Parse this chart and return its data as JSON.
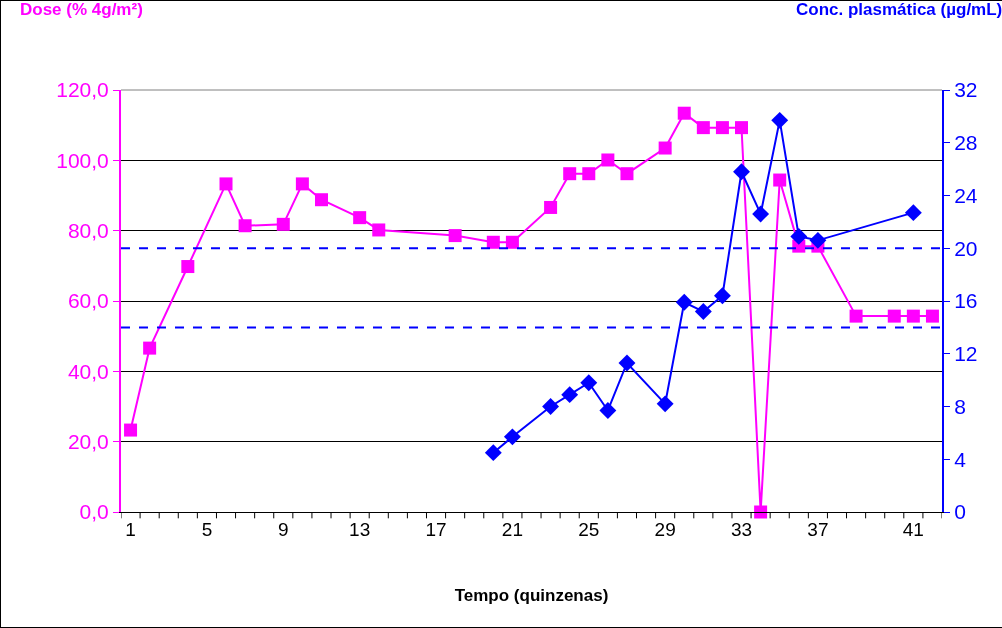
{
  "chart_data": {
    "type": "line",
    "xlabel": "Tempo (quinzenas)",
    "ylabel": "Dose (% 4g/m²)",
    "y2label": "Conc. plasmática (µg/mL)",
    "categories": [
      "1",
      null,
      null,
      null,
      "5",
      null,
      null,
      null,
      "9",
      null,
      null,
      null,
      "13",
      null,
      null,
      null,
      "17",
      null,
      null,
      null,
      "21",
      null,
      null,
      null,
      "25",
      null,
      null,
      null,
      "29",
      null,
      null,
      null,
      "33",
      null,
      null,
      null,
      "37",
      null,
      null,
      null,
      null,
      "41",
      null
    ],
    "series": [
      {
        "color": "#ff00ff",
        "marker": "square",
        "values": [
          23.3,
          46.6,
          null,
          69.8,
          null,
          93.3,
          81.4,
          null,
          81.8,
          93.3,
          88.8,
          null,
          83.7,
          80.2,
          null,
          null,
          null,
          78.6,
          null,
          76.7,
          76.7,
          null,
          86.6,
          96.2,
          96.2,
          100.1,
          96.2,
          null,
          103.5,
          113.4,
          109.3,
          109.3,
          109.3,
          0,
          94.4,
          75.6,
          75.6,
          null,
          55.7,
          null,
          55.7,
          55.7,
          55.7
        ]
      },
      {
        "color": "#0000ff",
        "marker": "diamond",
        "axis": "y2",
        "values": [
          null,
          null,
          null,
          null,
          null,
          null,
          null,
          null,
          null,
          null,
          null,
          null,
          null,
          null,
          null,
          null,
          null,
          null,
          null,
          4.5,
          5.7,
          null,
          8.0,
          8.9,
          9.8,
          7.7,
          11.3,
          null,
          8.2,
          15.9,
          15.2,
          16.4,
          25.8,
          22.6,
          29.7,
          20.9,
          20.6,
          null,
          null,
          null,
          null,
          22.7,
          null
        ]
      }
    ],
    "ylim": [
      0,
      120
    ],
    "yticks": [
      {
        "value": 0,
        "label": "0,0"
      },
      {
        "value": 20,
        "label": "20,0"
      },
      {
        "value": 40,
        "label": "40,0"
      },
      {
        "value": 60,
        "label": "60,0"
      },
      {
        "value": 80,
        "label": "80,0"
      },
      {
        "value": 100,
        "label": "100,0"
      },
      {
        "value": 120,
        "label": "120,0"
      }
    ],
    "y2lim": [
      0,
      32
    ],
    "y2ticks": [
      0,
      4,
      8,
      12,
      16,
      20,
      24,
      28,
      32
    ],
    "ref_lines": [
      {
        "axis": "y2",
        "value": 20,
        "color": "#0000ff",
        "line_style": "dashed"
      },
      {
        "axis": "y2",
        "value": 14,
        "color": "#0000ff",
        "line_style": "dashed"
      }
    ],
    "grid": "y"
  }
}
